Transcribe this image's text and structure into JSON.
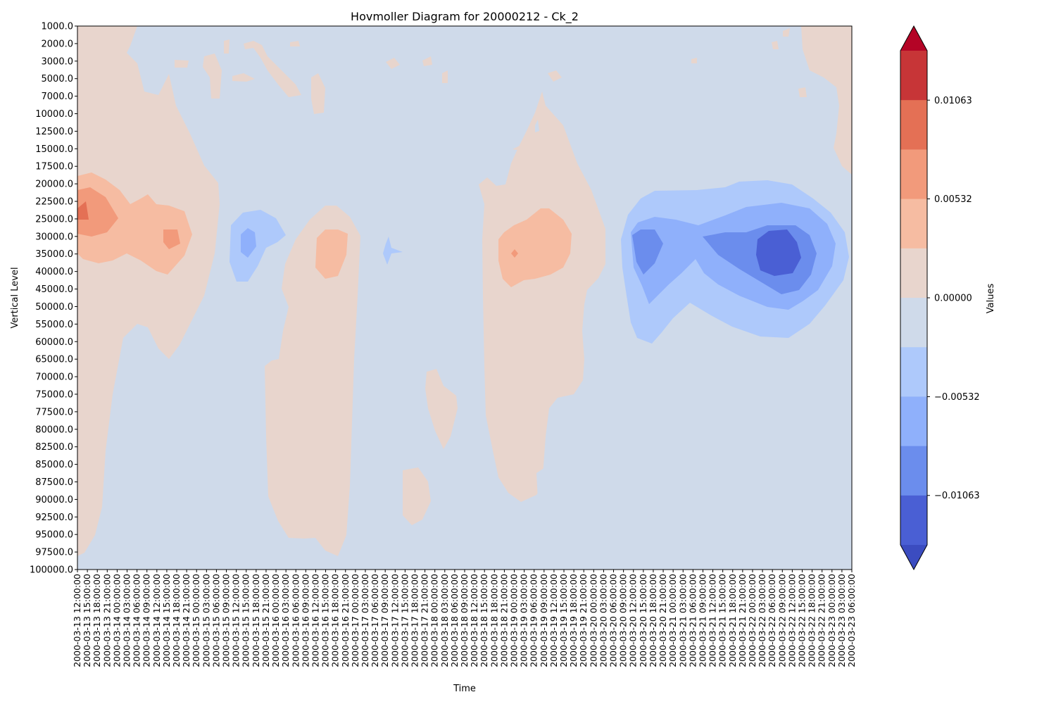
{
  "chart_data": {
    "type": "heatmap",
    "title": "Hovmoller Diagram for 20000212 - Ck_2",
    "xlabel": "Time",
    "ylabel": "Vertical Level",
    "x_ticks": [
      "2000-03-13 12:00:00",
      "2000-03-13 15:00:00",
      "2000-03-13 18:00:00",
      "2000-03-13 21:00:00",
      "2000-03-14 00:00:00",
      "2000-03-14 03:00:00",
      "2000-03-14 06:00:00",
      "2000-03-14 09:00:00",
      "2000-03-14 12:00:00",
      "2000-03-14 15:00:00",
      "2000-03-14 18:00:00",
      "2000-03-14 21:00:00",
      "2000-03-15 00:00:00",
      "2000-03-15 03:00:00",
      "2000-03-15 06:00:00",
      "2000-03-15 09:00:00",
      "2000-03-15 12:00:00",
      "2000-03-15 15:00:00",
      "2000-03-15 18:00:00",
      "2000-03-15 21:00:00",
      "2000-03-16 00:00:00",
      "2000-03-16 03:00:00",
      "2000-03-16 06:00:00",
      "2000-03-16 09:00:00",
      "2000-03-16 12:00:00",
      "2000-03-16 15:00:00",
      "2000-03-16 18:00:00",
      "2000-03-16 21:00:00",
      "2000-03-17 00:00:00",
      "2000-03-17 03:00:00",
      "2000-03-17 06:00:00",
      "2000-03-17 09:00:00",
      "2000-03-17 12:00:00",
      "2000-03-17 15:00:00",
      "2000-03-17 18:00:00",
      "2000-03-17 21:00:00",
      "2000-03-18 00:00:00",
      "2000-03-18 03:00:00",
      "2000-03-18 06:00:00",
      "2000-03-18 09:00:00",
      "2000-03-18 12:00:00",
      "2000-03-18 15:00:00",
      "2000-03-18 18:00:00",
      "2000-03-18 21:00:00",
      "2000-03-19 00:00:00",
      "2000-03-19 03:00:00",
      "2000-03-19 06:00:00",
      "2000-03-19 09:00:00",
      "2000-03-19 12:00:00",
      "2000-03-19 15:00:00",
      "2000-03-19 18:00:00",
      "2000-03-19 21:00:00",
      "2000-03-20 00:00:00",
      "2000-03-20 03:00:00",
      "2000-03-20 06:00:00",
      "2000-03-20 09:00:00",
      "2000-03-20 12:00:00",
      "2000-03-20 15:00:00",
      "2000-03-20 18:00:00",
      "2000-03-20 21:00:00",
      "2000-03-21 00:00:00",
      "2000-03-21 03:00:00",
      "2000-03-21 06:00:00",
      "2000-03-21 09:00:00",
      "2000-03-21 12:00:00",
      "2000-03-21 15:00:00",
      "2000-03-21 18:00:00",
      "2000-03-21 21:00:00",
      "2000-03-22 00:00:00",
      "2000-03-22 03:00:00",
      "2000-03-22 06:00:00",
      "2000-03-22 09:00:00",
      "2000-03-22 12:00:00",
      "2000-03-22 15:00:00",
      "2000-03-22 18:00:00",
      "2000-03-22 21:00:00",
      "2000-03-23 00:00:00",
      "2000-03-23 03:00:00",
      "2000-03-23 06:00:00"
    ],
    "y_ticks": [
      "1000.0",
      "2000.0",
      "3000.0",
      "5000.0",
      "7000.0",
      "10000.0",
      "12500.0",
      "15000.0",
      "17500.0",
      "20000.0",
      "22500.0",
      "25000.0",
      "30000.0",
      "35000.0",
      "40000.0",
      "45000.0",
      "50000.0",
      "55000.0",
      "60000.0",
      "65000.0",
      "70000.0",
      "75000.0",
      "77500.0",
      "80000.0",
      "82500.0",
      "85000.0",
      "87500.0",
      "90000.0",
      "92500.0",
      "95000.0",
      "97500.0",
      "100000.0"
    ],
    "y_inverted": true,
    "grid": false,
    "colormap": "coolwarm",
    "colorbar": {
      "label": "Values",
      "tick_labels": [
        "0.01063",
        "0.00532",
        "0.00000",
        "−0.00532",
        "−0.01063"
      ],
      "tick_values": [
        0.01063,
        0.00532,
        0.0,
        -0.00532,
        -0.01063
      ],
      "levels": [
        -0.01595,
        -0.01329,
        -0.01063,
        -0.00797,
        -0.00532,
        -0.00266,
        0.0,
        0.00266,
        0.00532,
        0.00797,
        0.01063,
        0.01329,
        0.01595
      ],
      "extend": "both",
      "colors": [
        "#3b4cc0",
        "#4a5fd4",
        "#6b8ded",
        "#8fb0fb",
        "#aec9fb",
        "#cfdaea",
        "#e8d5cd",
        "#f6bca2",
        "#f29a7b",
        "#e47055",
        "#c73537",
        "#b40426"
      ]
    },
    "background_value": -0.001,
    "features": [
      {
        "time_range": [
          "2000-03-13 12:00:00",
          "2000-03-14 21:00:00"
        ],
        "level_range": [
          "1000.0",
          "100000.0"
        ],
        "value": 0.0015
      },
      {
        "time_range": [
          "2000-03-13 12:00:00",
          "2000-03-14 18:00:00"
        ],
        "level_range": [
          "20000.0",
          "40000.0"
        ],
        "value": 0.0035
      },
      {
        "time_range": [
          "2000-03-13 12:00:00",
          "2000-03-14 00:00:00"
        ],
        "level_range": [
          "22500.0",
          "30000.0"
        ],
        "value": 0.006
      },
      {
        "time_range": [
          "2000-03-15 12:00:00",
          "2000-03-15 21:00:00"
        ],
        "level_range": [
          "25000.0",
          "40000.0"
        ],
        "value": -0.004
      },
      {
        "time_range": [
          "2000-03-15 21:00:00",
          "2000-03-16 21:00:00"
        ],
        "level_range": [
          "22500.0",
          "97500.0"
        ],
        "value": 0.0015
      },
      {
        "time_range": [
          "2000-03-16 12:00:00",
          "2000-03-16 18:00:00"
        ],
        "level_range": [
          "25000.0",
          "40000.0"
        ],
        "value": 0.0035
      },
      {
        "time_range": [
          "2000-03-17 12:00:00",
          "2000-03-17 21:00:00"
        ],
        "level_range": [
          "85000.0",
          "92500.0"
        ],
        "value": 0.0015
      },
      {
        "time_range": [
          "2000-03-18 18:00:00",
          "2000-03-19 18:00:00"
        ],
        "level_range": [
          "7000.0",
          "90000.0"
        ],
        "value": 0.0015
      },
      {
        "time_range": [
          "2000-03-19 00:00:00",
          "2000-03-19 12:00:00"
        ],
        "level_range": [
          "25000.0",
          "45000.0"
        ],
        "value": 0.0035
      },
      {
        "time_range": [
          "2000-03-20 12:00:00",
          "2000-03-22 21:00:00"
        ],
        "level_range": [
          "20000.0",
          "60000.0"
        ],
        "value": -0.0035
      },
      {
        "time_range": [
          "2000-03-20 12:00:00",
          "2000-03-22 18:00:00"
        ],
        "level_range": [
          "25000.0",
          "50000.0"
        ],
        "value": -0.006
      },
      {
        "time_range": [
          "2000-03-21 09:00:00",
          "2000-03-22 15:00:00"
        ],
        "level_range": [
          "30000.0",
          "45000.0"
        ],
        "value": -0.009
      },
      {
        "time_range": [
          "2000-03-22 06:00:00",
          "2000-03-22 12:00:00"
        ],
        "level_range": [
          "30000.0",
          "40000.0"
        ],
        "value": -0.0115
      },
      {
        "time_range": [
          "2000-03-22 18:00:00",
          "2000-03-23 06:00:00"
        ],
        "level_range": [
          "1000.0",
          "17500.0"
        ],
        "value": 0.0015
      }
    ]
  }
}
